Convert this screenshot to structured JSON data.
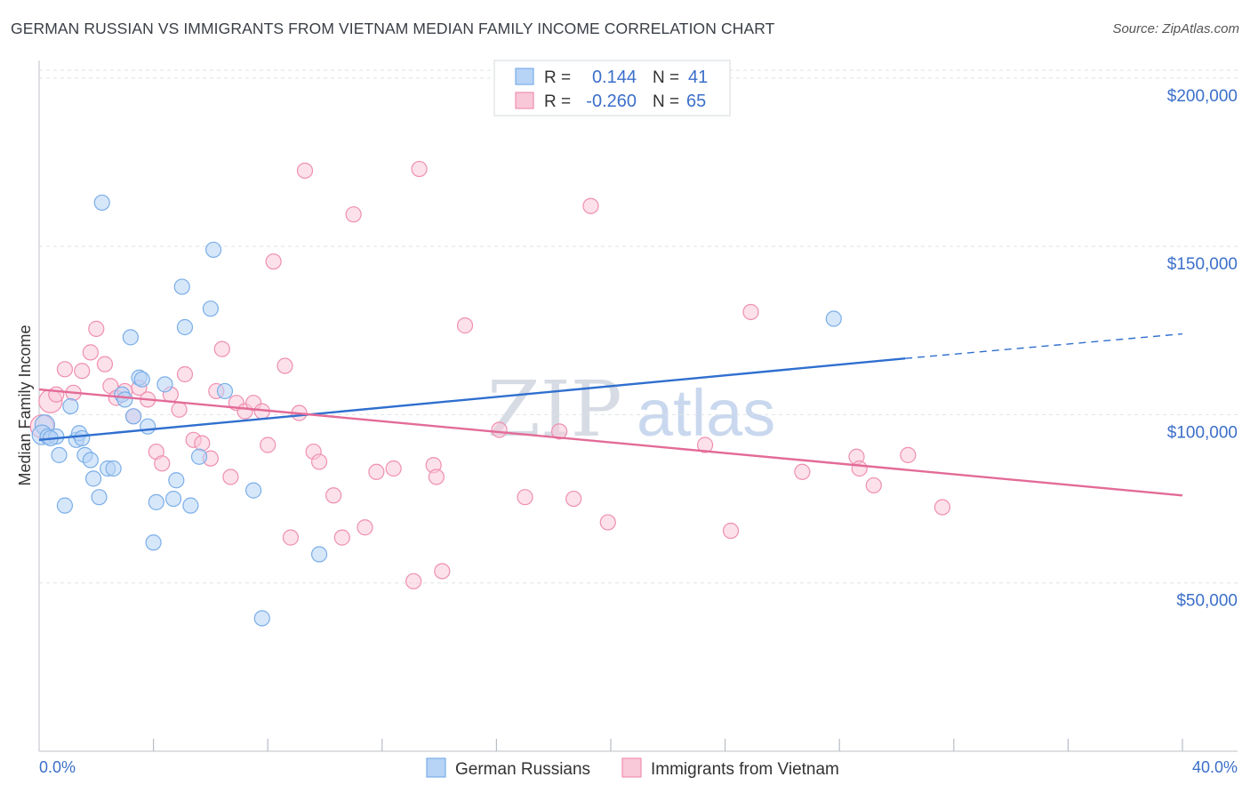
{
  "title": "GERMAN RUSSIAN VS IMMIGRANTS FROM VIETNAM MEDIAN FAMILY INCOME CORRELATION CHART",
  "source": "Source: ZipAtlas.com",
  "watermark": {
    "part1": "ZIP",
    "part2": "atlas"
  },
  "legend": {
    "row1": {
      "r_label": "R =",
      "r_value": "0.144",
      "n_label": "N =",
      "n_value": "41"
    },
    "row2": {
      "r_label": "R =",
      "r_value": "-0.260",
      "n_label": "N =",
      "n_value": "65"
    }
  },
  "colors": {
    "blue": "#7aaee8",
    "blue_fill": "#b7d3f5",
    "blue_line": "#2f6fcf",
    "pink": "#ef8fb0",
    "pink_fill": "#f9c8d8",
    "pink_line": "#e36b97",
    "accent": "#3b6fc9"
  },
  "chart_data": {
    "type": "scatter",
    "title": "GERMAN RUSSIAN VS IMMIGRANTS FROM VIETNAM MEDIAN FAMILY INCOME CORRELATION CHART",
    "xlabel": "",
    "ylabel": "Median Family Income",
    "xlim": [
      0,
      40
    ],
    "ylim": [
      0,
      210000
    ],
    "x_tick_labels": [
      "0.0%",
      "40.0%"
    ],
    "y_ticks": [
      50000,
      100000,
      150000,
      200000
    ],
    "y_tick_labels": [
      "$50,000",
      "$100,000",
      "$150,000",
      "$200,000"
    ],
    "legend_position": "top-center",
    "series": [
      {
        "name": "German Russians",
        "color": "#7aaee8",
        "r": 0.144,
        "n": 41,
        "trend": {
          "x0": 0,
          "y0": 92500,
          "x1": 30.3,
          "y1": 116700,
          "dash_x1": 40,
          "dash_y1": 124000
        },
        "points": [
          [
            0.2,
            97000,
            14
          ],
          [
            0.1,
            94000,
            14
          ],
          [
            0.3,
            93500,
            10
          ],
          [
            0.6,
            93500,
            10
          ],
          [
            0.7,
            88000,
            10
          ],
          [
            0.9,
            73000,
            10
          ],
          [
            1.1,
            102500,
            10
          ],
          [
            1.3,
            92500,
            10
          ],
          [
            1.4,
            94500,
            10
          ],
          [
            1.5,
            93000,
            10
          ],
          [
            1.6,
            88000,
            10
          ],
          [
            1.8,
            86500,
            10
          ],
          [
            1.9,
            81000,
            10
          ],
          [
            2.1,
            75500,
            10
          ],
          [
            2.2,
            163000,
            10
          ],
          [
            2.4,
            84000,
            10
          ],
          [
            2.6,
            84000,
            10
          ],
          [
            2.9,
            106000,
            10
          ],
          [
            3.0,
            104500,
            10
          ],
          [
            3.2,
            123000,
            10
          ],
          [
            3.3,
            99500,
            10
          ],
          [
            3.5,
            111000,
            10
          ],
          [
            3.6,
            110500,
            10
          ],
          [
            3.8,
            96500,
            10
          ],
          [
            4.0,
            62000,
            10
          ],
          [
            4.1,
            74000,
            10
          ],
          [
            4.4,
            109000,
            10
          ],
          [
            4.7,
            75000,
            10
          ],
          [
            4.8,
            80500,
            10
          ],
          [
            5.0,
            138000,
            10
          ],
          [
            5.1,
            126000,
            10
          ],
          [
            5.3,
            73000,
            10
          ],
          [
            5.6,
            87500,
            10
          ],
          [
            6.0,
            131500,
            10
          ],
          [
            6.1,
            149000,
            10
          ],
          [
            6.5,
            107000,
            10
          ],
          [
            7.5,
            77500,
            10
          ],
          [
            7.8,
            39500,
            10
          ],
          [
            9.8,
            58500,
            10
          ],
          [
            27.8,
            128500,
            10
          ],
          [
            0.4,
            93000,
            10
          ]
        ]
      },
      {
        "name": "Immigrants from Vietnam",
        "color": "#ef8fb0",
        "r": -0.26,
        "n": 65,
        "trend": {
          "x0": 0,
          "y0": 107500,
          "x1": 40,
          "y1": 76000
        },
        "points": [
          [
            0.1,
            96500,
            18
          ],
          [
            0.4,
            104000,
            16
          ],
          [
            0.6,
            106000,
            10
          ],
          [
            0.9,
            113500,
            10
          ],
          [
            1.2,
            106500,
            10
          ],
          [
            1.5,
            113000,
            10
          ],
          [
            1.8,
            118500,
            10
          ],
          [
            2.0,
            125500,
            10
          ],
          [
            2.3,
            115000,
            10
          ],
          [
            2.5,
            108500,
            10
          ],
          [
            2.7,
            105000,
            10
          ],
          [
            3.0,
            107000,
            10
          ],
          [
            3.3,
            99500,
            10
          ],
          [
            3.5,
            108000,
            10
          ],
          [
            3.8,
            104500,
            10
          ],
          [
            4.1,
            89000,
            10
          ],
          [
            4.3,
            85500,
            10
          ],
          [
            4.6,
            106000,
            10
          ],
          [
            4.9,
            101500,
            10
          ],
          [
            5.1,
            112000,
            10
          ],
          [
            5.4,
            92500,
            10
          ],
          [
            5.7,
            91500,
            10
          ],
          [
            6.0,
            87000,
            10
          ],
          [
            6.2,
            107000,
            10
          ],
          [
            6.4,
            119500,
            10
          ],
          [
            6.7,
            81500,
            10
          ],
          [
            6.9,
            103500,
            10
          ],
          [
            7.2,
            101000,
            10
          ],
          [
            7.5,
            103500,
            10
          ],
          [
            7.8,
            101000,
            10
          ],
          [
            8.0,
            91000,
            10
          ],
          [
            8.2,
            145500,
            10
          ],
          [
            8.6,
            114500,
            10
          ],
          [
            8.8,
            63500,
            10
          ],
          [
            9.1,
            100500,
            10
          ],
          [
            9.3,
            172500,
            10
          ],
          [
            9.6,
            89000,
            10
          ],
          [
            9.8,
            86000,
            10
          ],
          [
            10.3,
            76000,
            10
          ],
          [
            10.6,
            63500,
            10
          ],
          [
            11.0,
            159500,
            10
          ],
          [
            11.4,
            66500,
            10
          ],
          [
            11.8,
            83000,
            10
          ],
          [
            12.4,
            84000,
            10
          ],
          [
            13.1,
            50500,
            10
          ],
          [
            13.3,
            173000,
            10
          ],
          [
            13.8,
            85000,
            10
          ],
          [
            13.9,
            81500,
            10
          ],
          [
            14.1,
            53500,
            10
          ],
          [
            14.9,
            126500,
            10
          ],
          [
            16.1,
            95500,
            10
          ],
          [
            17.0,
            75500,
            10
          ],
          [
            18.2,
            95000,
            10
          ],
          [
            18.7,
            75000,
            10
          ],
          [
            19.3,
            162000,
            10
          ],
          [
            19.9,
            68000,
            10
          ],
          [
            23.3,
            91000,
            10
          ],
          [
            24.2,
            65500,
            10
          ],
          [
            24.9,
            130500,
            10
          ],
          [
            26.7,
            83000,
            10
          ],
          [
            28.6,
            87500,
            10
          ],
          [
            28.7,
            84000,
            10
          ],
          [
            29.2,
            79000,
            10
          ],
          [
            30.4,
            88000,
            10
          ],
          [
            31.6,
            72500,
            10
          ]
        ]
      }
    ]
  }
}
